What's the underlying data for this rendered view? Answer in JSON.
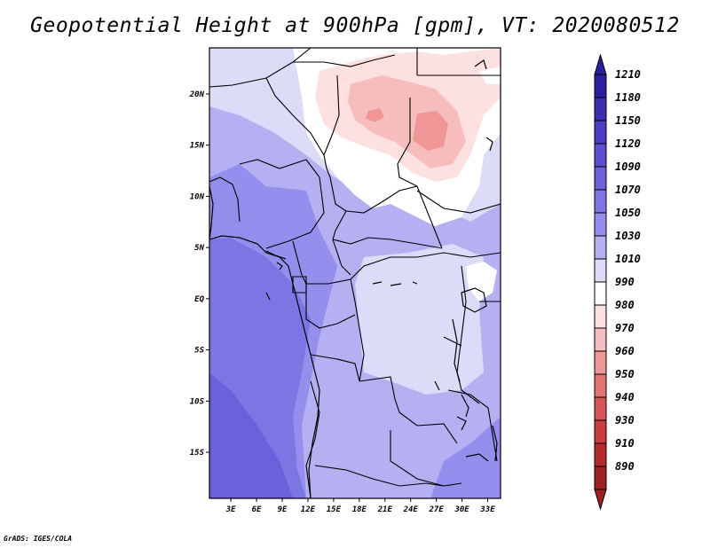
{
  "title": "Geopotential Height at 900hPa [gpm], VT: 2020080512",
  "credit": "GrADS: IGES/COLA",
  "map": {
    "lat_ticks": [
      {
        "label": "20N",
        "lat": 20
      },
      {
        "label": "15N",
        "lat": 15
      },
      {
        "label": "10N",
        "lat": 10
      },
      {
        "label": "5N",
        "lat": 5
      },
      {
        "label": "EQ",
        "lat": 0
      },
      {
        "label": "5S",
        "lat": -5
      },
      {
        "label": "10S",
        "lat": -10
      },
      {
        "label": "15S",
        "lat": -15
      }
    ],
    "lon_ticks": [
      {
        "label": "3E",
        "lon": 3
      },
      {
        "label": "6E",
        "lon": 6
      },
      {
        "label": "9E",
        "lon": 9
      },
      {
        "label": "12E",
        "lon": 12
      },
      {
        "label": "15E",
        "lon": 15
      },
      {
        "label": "18E",
        "lon": 18
      },
      {
        "label": "21E",
        "lon": 21
      },
      {
        "label": "24E",
        "lon": 24
      },
      {
        "label": "27E",
        "lon": 27
      },
      {
        "label": "30E",
        "lon": 30
      },
      {
        "label": "33E",
        "lon": 33
      }
    ]
  },
  "colorbar": {
    "entries": [
      {
        "label": "1210",
        "color": "#2a1fa0"
      },
      {
        "label": "1180",
        "color": "#3a2eb5"
      },
      {
        "label": "1150",
        "color": "#4a3ec6"
      },
      {
        "label": "1120",
        "color": "#5a50d2"
      },
      {
        "label": "1090",
        "color": "#6a62dc"
      },
      {
        "label": "1070",
        "color": "#7c76e4"
      },
      {
        "label": "1050",
        "color": "#948fec"
      },
      {
        "label": "1030",
        "color": "#b4b0f2"
      },
      {
        "label": "1010",
        "color": "#dcdcf8"
      },
      {
        "label": "990",
        "color": "#ffffff"
      },
      {
        "label": "980",
        "color": "#fde0e0"
      },
      {
        "label": "970",
        "color": "#f7bcbc"
      },
      {
        "label": "960",
        "color": "#f09696"
      },
      {
        "label": "950",
        "color": "#e47474"
      },
      {
        "label": "940",
        "color": "#d85454"
      },
      {
        "label": "930",
        "color": "#cc3c3c"
      },
      {
        "label": "910",
        "color": "#b82a2a"
      },
      {
        "label": "890",
        "color": "#a21f1f"
      }
    ]
  }
}
